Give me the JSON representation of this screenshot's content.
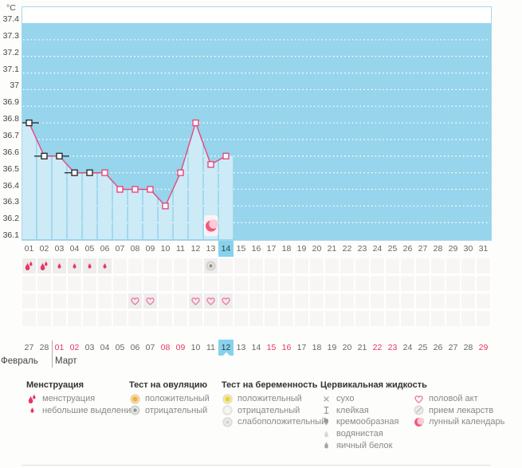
{
  "unit_label": "°C",
  "colors": {
    "plot_bg": "#96d5ec",
    "plot_top_band": "#ffffff",
    "plot_border": "#a9d6e6",
    "area_fill": "#cdeaf7",
    "line": "#e5487e",
    "marker_black": "#2f2f2f",
    "grid": "#ffffff",
    "highlight_cell": "#85d2ec",
    "weekend_date": "#e8365f",
    "drop": "#e8365f",
    "heart": "#ef6f9e",
    "moon": "#f4577d"
  },
  "chart_data": {
    "type": "line",
    "ylabel": "°C",
    "ylim": [
      36.1,
      37.4
    ],
    "ytick_step": 0.1,
    "yticks": [
      "37.4",
      "37.3",
      "37.2",
      "37.1",
      "37",
      "36.9",
      "36.8",
      "36.7",
      "36.6",
      "36.5",
      "36.4",
      "36.3",
      "36.2",
      "36.1"
    ],
    "x_categories": [
      "01",
      "02",
      "03",
      "04",
      "05",
      "06",
      "07",
      "08",
      "09",
      "10",
      "11",
      "12",
      "13",
      "14",
      "15",
      "16",
      "17",
      "18",
      "19",
      "20",
      "21",
      "22",
      "23",
      "24",
      "25",
      "26",
      "27",
      "28",
      "29",
      "30",
      "31"
    ],
    "current_cycle_day": "14",
    "grid": "dotted-horizontal",
    "legend_position": "bottom",
    "series": [
      {
        "name": "basal-temperature",
        "points": [
          {
            "day": 1,
            "temp": 36.8,
            "marker": "black"
          },
          {
            "day": 2,
            "temp": 36.6,
            "marker": "black"
          },
          {
            "day": 3,
            "temp": 36.6,
            "marker": "black"
          },
          {
            "day": 4,
            "temp": 36.5,
            "marker": "black"
          },
          {
            "day": 5,
            "temp": 36.5,
            "marker": "black"
          },
          {
            "day": 6,
            "temp": 36.5,
            "marker": "pink"
          },
          {
            "day": 7,
            "temp": 36.4,
            "marker": "pink"
          },
          {
            "day": 8,
            "temp": 36.4,
            "marker": "pink"
          },
          {
            "day": 9,
            "temp": 36.4,
            "marker": "pink"
          },
          {
            "day": 10,
            "temp": 36.3,
            "marker": "pink"
          },
          {
            "day": 11,
            "temp": 36.5,
            "marker": "pink"
          },
          {
            "day": 12,
            "temp": 36.8,
            "marker": "pink"
          },
          {
            "day": 13,
            "temp": 36.55,
            "marker": "pink"
          },
          {
            "day": 14,
            "temp": 36.6,
            "marker": "pink"
          }
        ]
      }
    ],
    "annotations": [
      {
        "day": 13,
        "icon": "moon",
        "meaning": "лунный календарь"
      }
    ]
  },
  "event_rows": {
    "row1": [
      {
        "day": 1,
        "icon": "drop-double"
      },
      {
        "day": 2,
        "icon": "drop-double"
      },
      {
        "day": 3,
        "icon": "drop-small"
      },
      {
        "day": 4,
        "icon": "drop-small"
      },
      {
        "day": 5,
        "icon": "drop-small"
      },
      {
        "day": 6,
        "icon": "drop-small"
      },
      {
        "day": 13,
        "icon": "circle-gray"
      }
    ],
    "row2": [],
    "row3": [
      {
        "day": 8,
        "icon": "heart"
      },
      {
        "day": 9,
        "icon": "heart"
      },
      {
        "day": 12,
        "icon": "heart"
      },
      {
        "day": 13,
        "icon": "heart"
      },
      {
        "day": 14,
        "icon": "heart"
      }
    ],
    "row4": []
  },
  "calendar": {
    "months": [
      {
        "label": "Февраль"
      },
      {
        "label": "Март"
      }
    ],
    "dates": [
      {
        "d": "27",
        "style": "normal"
      },
      {
        "d": "28",
        "style": "normal"
      },
      {
        "d": "01",
        "style": "weekend"
      },
      {
        "d": "02",
        "style": "weekend"
      },
      {
        "d": "03",
        "style": "normal"
      },
      {
        "d": "04",
        "style": "normal"
      },
      {
        "d": "05",
        "style": "normal"
      },
      {
        "d": "06",
        "style": "normal"
      },
      {
        "d": "07",
        "style": "normal"
      },
      {
        "d": "08",
        "style": "weekend"
      },
      {
        "d": "09",
        "style": "weekend"
      },
      {
        "d": "10",
        "style": "normal"
      },
      {
        "d": "11",
        "style": "normal"
      },
      {
        "d": "12",
        "style": "current"
      },
      {
        "d": "13",
        "style": "normal"
      },
      {
        "d": "14",
        "style": "normal"
      },
      {
        "d": "15",
        "style": "weekend"
      },
      {
        "d": "16",
        "style": "weekend"
      },
      {
        "d": "17",
        "style": "normal"
      },
      {
        "d": "18",
        "style": "normal"
      },
      {
        "d": "19",
        "style": "normal"
      },
      {
        "d": "20",
        "style": "normal"
      },
      {
        "d": "21",
        "style": "normal"
      },
      {
        "d": "22",
        "style": "weekend"
      },
      {
        "d": "23",
        "style": "weekend"
      },
      {
        "d": "24",
        "style": "normal"
      },
      {
        "d": "25",
        "style": "normal"
      },
      {
        "d": "26",
        "style": "normal"
      },
      {
        "d": "27",
        "style": "normal"
      },
      {
        "d": "28",
        "style": "normal"
      },
      {
        "d": "29",
        "style": "weekend"
      }
    ]
  },
  "legend": {
    "columns": [
      {
        "header": "Менструация",
        "items": [
          {
            "icon": "drop-double",
            "label": "менструация"
          },
          {
            "icon": "drop-small",
            "label": "небольшие выделения"
          }
        ]
      },
      {
        "header": "Тест на овуляцию",
        "items": [
          {
            "icon": "circle-amber",
            "label": "положительный"
          },
          {
            "icon": "circle-gray",
            "label": "отрицательный"
          }
        ]
      },
      {
        "header": "Тест на беременность",
        "items": [
          {
            "icon": "circle-yellow",
            "label": "положительный"
          },
          {
            "icon": "circle-light",
            "label": "отрицательный"
          },
          {
            "icon": "circle-faint",
            "label": "слабоположительный"
          }
        ]
      },
      {
        "header": "Цервикальная жидкость",
        "items": [
          {
            "icon": "cross",
            "label": "сухо"
          },
          {
            "icon": "ibeam",
            "label": "клейкая"
          },
          {
            "icon": "comma",
            "label": "кремообразная"
          },
          {
            "icon": "drop-light",
            "label": "водянистая"
          },
          {
            "icon": "drop-dark",
            "label": "яичный белок"
          }
        ]
      },
      {
        "header": "",
        "items": [
          {
            "icon": "heart",
            "label": "половой акт"
          },
          {
            "icon": "pill",
            "label": "прием лекарств"
          },
          {
            "icon": "moon",
            "label": "лунный календарь"
          }
        ]
      }
    ]
  }
}
